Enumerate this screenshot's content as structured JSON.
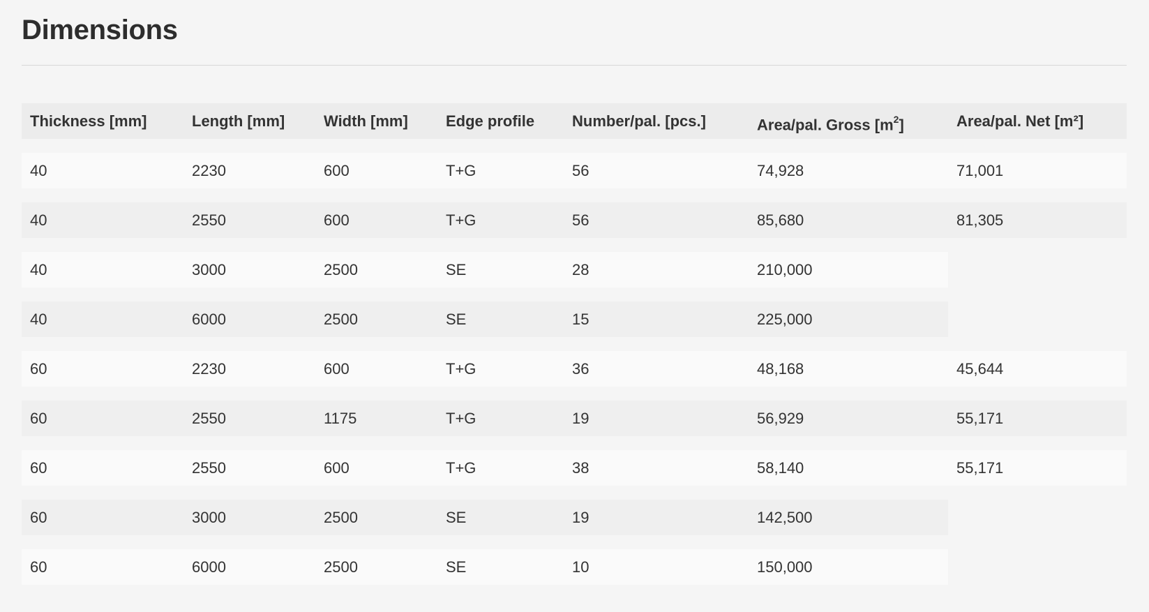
{
  "page": {
    "title": "Dimensions"
  },
  "table": {
    "headers": [
      "Thickness [mm]",
      "Length [mm]",
      "Width [mm]",
      "Edge profile",
      "Number/pal. [pcs.]",
      "Area/pal. Gross [m",
      "Area/pal. Net [m²]"
    ],
    "header_gross_sup": "2",
    "header_gross_suffix": "]",
    "rows": [
      [
        "40",
        "2230",
        "600",
        "T+G",
        "56",
        "74,928",
        "71,001"
      ],
      [
        "40",
        "2550",
        "600",
        "T+G",
        "56",
        "85,680",
        "81,305"
      ],
      [
        "40",
        "3000",
        "2500",
        "SE",
        "28",
        "210,000",
        ""
      ],
      [
        "40",
        "6000",
        "2500",
        "SE",
        "15",
        "225,000",
        ""
      ],
      [
        "60",
        "2230",
        "600",
        "T+G",
        "36",
        "48,168",
        "45,644"
      ],
      [
        "60",
        "2550",
        "1175",
        "T+G",
        "19",
        "56,929",
        "55,171"
      ],
      [
        "60",
        "2550",
        "600",
        "T+G",
        "38",
        "58,140",
        "55,171"
      ],
      [
        "60",
        "3000",
        "2500",
        "SE",
        "19",
        "142,500",
        ""
      ],
      [
        "60",
        "6000",
        "2500",
        "SE",
        "10",
        "150,000",
        ""
      ]
    ]
  },
  "colors": {
    "background": "#f5f5f5",
    "header_row": "#ececec",
    "row_odd": "#fafafa",
    "row_even": "#efefef",
    "text": "#333333"
  }
}
